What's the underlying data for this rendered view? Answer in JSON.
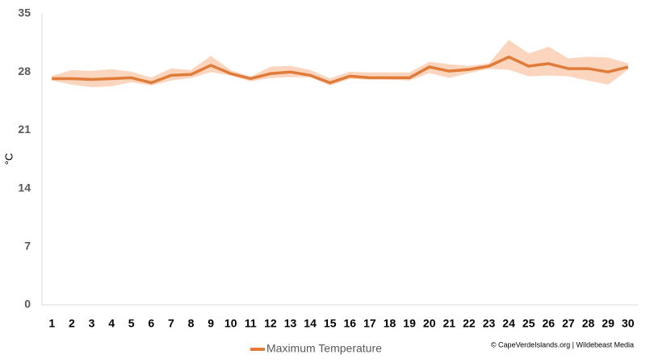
{
  "chart_data": {
    "type": "line",
    "categories": [
      "1",
      "2",
      "3",
      "4",
      "5",
      "6",
      "7",
      "8",
      "9",
      "10",
      "11",
      "12",
      "13",
      "14",
      "15",
      "16",
      "17",
      "18",
      "19",
      "20",
      "21",
      "22",
      "23",
      "24",
      "25",
      "26",
      "27",
      "28",
      "29",
      "30"
    ],
    "series": [
      {
        "name": "Maximum Temperature",
        "color": "#e07b39",
        "values": [
          27.2,
          27.2,
          27.1,
          27.2,
          27.3,
          26.7,
          27.6,
          27.7,
          28.8,
          27.8,
          27.2,
          27.8,
          28.0,
          27.6,
          26.7,
          27.5,
          27.3,
          27.3,
          27.3,
          28.6,
          28.1,
          28.3,
          28.7,
          29.8,
          28.7,
          29.0,
          28.4,
          28.4,
          28.0,
          28.6
        ]
      }
    ],
    "band": {
      "color": "#fbd5bd",
      "upper": [
        27.5,
        28.2,
        28.1,
        28.3,
        28.0,
        27.3,
        28.4,
        28.2,
        29.9,
        28.2,
        27.4,
        28.6,
        28.7,
        28.2,
        27.2,
        28.0,
        27.9,
        27.9,
        27.9,
        29.2,
        28.9,
        28.7,
        29.0,
        31.8,
        30.2,
        31.0,
        29.6,
        29.8,
        29.7,
        29.0
      ],
      "lower": [
        27.0,
        26.5,
        26.2,
        26.3,
        26.8,
        26.4,
        27.0,
        27.3,
        28.0,
        27.6,
        26.9,
        27.3,
        27.4,
        27.4,
        26.4,
        27.2,
        27.1,
        27.1,
        27.0,
        27.9,
        27.3,
        27.9,
        28.4,
        28.3,
        27.5,
        27.6,
        27.5,
        27.0,
        26.5,
        28.3
      ]
    },
    "ylabel": "°C",
    "ylim": [
      0,
      35
    ],
    "yticks": [
      0,
      7,
      14,
      21,
      28,
      35
    ],
    "grid": false,
    "legend": "bottom",
    "source": "© CapeVerdeIslands.org | Wildebeast Media"
  }
}
